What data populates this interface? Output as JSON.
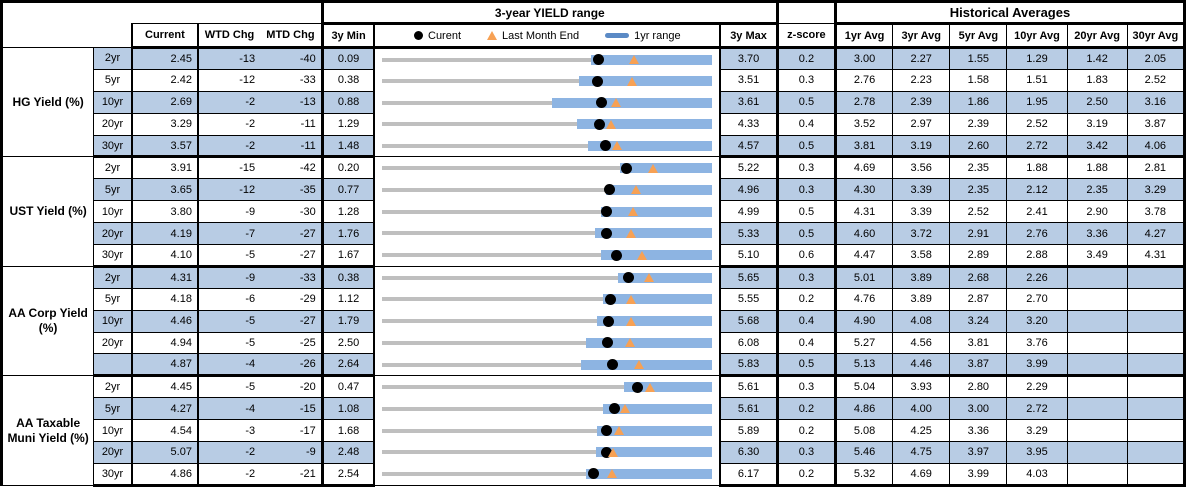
{
  "header": {
    "yield_range_title": "3-year YIELD range",
    "historical_title": "Historical Averages",
    "col_current": "Current",
    "col_wtd": "WTD Chg",
    "col_mtd": "MTD Chg",
    "col_min": "3y Min",
    "col_max": "3y Max",
    "col_z": "z-score",
    "col_avg1": "1yr Avg",
    "col_avg3": "3yr Avg",
    "col_avg5": "5yr Avg",
    "col_avg10": "10yr Avg",
    "col_avg20": "20yr Avg",
    "col_avg30": "30yr Avg",
    "legend": {
      "current": "Curent",
      "last_month_end": "Last Month End",
      "range_1yr": "1yr range"
    }
  },
  "colors": {
    "row_stripe": "#b8cce4",
    "bar_1yr": "#8db4e2",
    "track_3y": "#bfbfbf",
    "marker_current": "#000000",
    "marker_last_month_end": "#f7a154",
    "legend_dash": "#5b8ac5",
    "border": "#000000"
  },
  "sections": [
    {
      "label": "HG Yield (%)",
      "rows": [
        {
          "tenor": "2yr",
          "current": "2.45",
          "wtd": "-13",
          "mtd": "-40",
          "min3y": "0.09",
          "max3y": "3.70",
          "zscore": "0.2",
          "avgs": [
            "3.00",
            "2.27",
            "1.55",
            "1.29",
            "1.42",
            "2.05"
          ],
          "chart": {
            "low1yr": 2.37,
            "lme": 2.85
          }
        },
        {
          "tenor": "5yr",
          "current": "2.42",
          "wtd": "-12",
          "mtd": "-33",
          "min3y": "0.38",
          "max3y": "3.51",
          "zscore": "0.3",
          "avgs": [
            "2.76",
            "2.23",
            "1.58",
            "1.51",
            "1.83",
            "2.52"
          ],
          "chart": {
            "low1yr": 2.25,
            "lme": 2.75
          }
        },
        {
          "tenor": "10yr",
          "current": "2.69",
          "wtd": "-2",
          "mtd": "-13",
          "min3y": "0.88",
          "max3y": "3.61",
          "zscore": "0.5",
          "avgs": [
            "2.78",
            "2.39",
            "1.86",
            "1.95",
            "2.50",
            "3.16"
          ],
          "chart": {
            "low1yr": 2.28,
            "lme": 2.82
          }
        },
        {
          "tenor": "20yr",
          "current": "3.29",
          "wtd": "-2",
          "mtd": "-11",
          "min3y": "1.29",
          "max3y": "4.33",
          "zscore": "0.4",
          "avgs": [
            "3.52",
            "2.97",
            "2.39",
            "2.52",
            "3.19",
            "3.87"
          ],
          "chart": {
            "low1yr": 3.08,
            "lme": 3.4
          }
        },
        {
          "tenor": "30yr",
          "current": "3.57",
          "wtd": "-2",
          "mtd": "-11",
          "min3y": "1.48",
          "max3y": "4.57",
          "zscore": "0.5",
          "avgs": [
            "3.81",
            "3.19",
            "2.60",
            "2.72",
            "3.42",
            "4.06"
          ],
          "chart": {
            "low1yr": 3.41,
            "lme": 3.68
          }
        }
      ]
    },
    {
      "label": "UST Yield (%)",
      "rows": [
        {
          "tenor": "2yr",
          "current": "3.91",
          "wtd": "-15",
          "mtd": "-42",
          "min3y": "0.20",
          "max3y": "5.22",
          "zscore": "0.3",
          "avgs": [
            "4.69",
            "3.56",
            "2.35",
            "1.88",
            "1.88",
            "2.81"
          ],
          "chart": {
            "low1yr": 3.81,
            "lme": 4.33
          }
        },
        {
          "tenor": "5yr",
          "current": "3.65",
          "wtd": "-12",
          "mtd": "-35",
          "min3y": "0.77",
          "max3y": "4.96",
          "zscore": "0.3",
          "avgs": [
            "4.30",
            "3.39",
            "2.35",
            "2.12",
            "2.35",
            "3.29"
          ],
          "chart": {
            "low1yr": 3.61,
            "lme": 4.0
          }
        },
        {
          "tenor": "10yr",
          "current": "3.80",
          "wtd": "-9",
          "mtd": "-30",
          "min3y": "1.28",
          "max3y": "4.99",
          "zscore": "0.5",
          "avgs": [
            "4.31",
            "3.39",
            "2.52",
            "2.41",
            "2.90",
            "3.78"
          ],
          "chart": {
            "low1yr": 3.74,
            "lme": 4.1
          }
        },
        {
          "tenor": "20yr",
          "current": "4.19",
          "wtd": "-7",
          "mtd": "-27",
          "min3y": "1.76",
          "max3y": "5.33",
          "zscore": "0.5",
          "avgs": [
            "4.60",
            "3.72",
            "2.91",
            "2.76",
            "3.36",
            "4.27"
          ],
          "chart": {
            "low1yr": 4.06,
            "lme": 4.46
          }
        },
        {
          "tenor": "30yr",
          "current": "4.10",
          "wtd": "-5",
          "mtd": "-27",
          "min3y": "1.67",
          "max3y": "5.10",
          "zscore": "0.6",
          "avgs": [
            "4.47",
            "3.58",
            "2.89",
            "2.88",
            "3.49",
            "4.31"
          ],
          "chart": {
            "low1yr": 3.94,
            "lme": 4.37
          }
        }
      ]
    },
    {
      "label": "AA Corp Yield (%)",
      "rows": [
        {
          "tenor": "2yr",
          "current": "4.31",
          "wtd": "-9",
          "mtd": "-33",
          "min3y": "0.38",
          "max3y": "5.65",
          "zscore": "0.3",
          "avgs": [
            "5.01",
            "3.89",
            "2.68",
            "2.26",
            "",
            ""
          ],
          "chart": {
            "low1yr": 4.14,
            "lme": 4.64
          }
        },
        {
          "tenor": "5yr",
          "current": "4.18",
          "wtd": "-6",
          "mtd": "-29",
          "min3y": "1.12",
          "max3y": "5.55",
          "zscore": "0.2",
          "avgs": [
            "4.76",
            "3.89",
            "2.87",
            "2.70",
            "",
            ""
          ],
          "chart": {
            "low1yr": 4.08,
            "lme": 4.47
          }
        },
        {
          "tenor": "10yr",
          "current": "4.46",
          "wtd": "-5",
          "mtd": "-27",
          "min3y": "1.79",
          "max3y": "5.68",
          "zscore": "0.4",
          "avgs": [
            "4.90",
            "4.08",
            "3.24",
            "3.20",
            "",
            ""
          ],
          "chart": {
            "low1yr": 4.32,
            "lme": 4.73
          }
        },
        {
          "tenor": "20yr",
          "current": "4.94",
          "wtd": "-5",
          "mtd": "-25",
          "min3y": "2.50",
          "max3y": "6.08",
          "zscore": "0.4",
          "avgs": [
            "5.27",
            "4.56",
            "3.81",
            "3.76",
            "",
            ""
          ],
          "chart": {
            "low1yr": 4.71,
            "lme": 5.19
          }
        },
        {
          "tenor": "",
          "current": "4.87",
          "wtd": "-4",
          "mtd": "-26",
          "min3y": "2.64",
          "max3y": "5.83",
          "zscore": "0.5",
          "avgs": [
            "5.13",
            "4.46",
            "3.87",
            "3.99",
            "",
            ""
          ],
          "chart": {
            "low1yr": 4.56,
            "lme": 5.13
          }
        }
      ]
    },
    {
      "label": "AA Taxable Muni Yield (%)",
      "rows": [
        {
          "tenor": "2yr",
          "current": "4.45",
          "wtd": "-5",
          "mtd": "-20",
          "min3y": "0.47",
          "max3y": "5.61",
          "zscore": "0.3",
          "avgs": [
            "5.04",
            "3.93",
            "2.80",
            "2.29",
            "",
            ""
          ],
          "chart": {
            "low1yr": 4.24,
            "lme": 4.65
          }
        },
        {
          "tenor": "5yr",
          "current": "4.27",
          "wtd": "-4",
          "mtd": "-15",
          "min3y": "1.08",
          "max3y": "5.61",
          "zscore": "0.2",
          "avgs": [
            "4.86",
            "4.00",
            "3.00",
            "2.72",
            "",
            ""
          ],
          "chart": {
            "low1yr": 4.11,
            "lme": 4.42
          }
        },
        {
          "tenor": "10yr",
          "current": "4.54",
          "wtd": "-3",
          "mtd": "-17",
          "min3y": "1.68",
          "max3y": "5.89",
          "zscore": "0.2",
          "avgs": [
            "5.08",
            "4.25",
            "3.36",
            "3.29",
            "",
            ""
          ],
          "chart": {
            "low1yr": 4.42,
            "lme": 4.71
          }
        },
        {
          "tenor": "20yr",
          "current": "5.07",
          "wtd": "-2",
          "mtd": "-9",
          "min3y": "2.48",
          "max3y": "6.30",
          "zscore": "0.3",
          "avgs": [
            "5.46",
            "4.75",
            "3.97",
            "3.95",
            "",
            ""
          ],
          "chart": {
            "low1yr": 4.95,
            "lme": 5.16
          }
        },
        {
          "tenor": "30yr",
          "current": "4.86",
          "wtd": "-2",
          "mtd": "-21",
          "min3y": "2.54",
          "max3y": "6.17",
          "zscore": "0.2",
          "avgs": [
            "5.32",
            "4.69",
            "3.99",
            "4.03",
            "",
            ""
          ],
          "chart": {
            "low1yr": 4.78,
            "lme": 5.07
          }
        }
      ]
    }
  ],
  "chart_data": {
    "type": "bullet-range",
    "title": "3-year YIELD range",
    "legend": [
      "Curent",
      "Last Month End",
      "1yr range"
    ],
    "x_axis_note": "each row scaled from its own 3y Min to 3y Max (yield %); gray track = 3y range, blue bar = 1yr range (upper end equals 3y Max), black dot = current, orange triangle = last month end",
    "groups": [
      {
        "name": "HG Yield (%)",
        "tenors": [
          "2yr",
          "5yr",
          "10yr",
          "20yr",
          "30yr"
        ],
        "current": [
          2.45,
          2.42,
          2.69,
          3.29,
          3.57
        ],
        "wtd_chg_bp": [
          -13,
          -12,
          -2,
          -2,
          -2
        ],
        "mtd_chg_bp": [
          -40,
          -33,
          -13,
          -11,
          -11
        ],
        "min_3y": [
          0.09,
          0.38,
          0.88,
          1.29,
          1.48
        ],
        "max_3y": [
          3.7,
          3.51,
          3.61,
          4.33,
          4.57
        ],
        "last_month_end": [
          2.85,
          2.75,
          2.82,
          3.4,
          3.68
        ],
        "range_1yr_low_est": [
          2.37,
          2.25,
          2.28,
          3.08,
          3.41
        ],
        "range_1yr_high": [
          3.7,
          3.51,
          3.61,
          4.33,
          4.57
        ],
        "z_score": [
          0.2,
          0.3,
          0.5,
          0.4,
          0.5
        ],
        "avg_1yr": [
          3.0,
          2.76,
          2.78,
          3.52,
          3.81
        ],
        "avg_3yr": [
          2.27,
          2.23,
          2.39,
          2.97,
          3.19
        ],
        "avg_5yr": [
          1.55,
          1.58,
          1.86,
          2.39,
          2.6
        ],
        "avg_10yr": [
          1.29,
          1.51,
          1.95,
          2.52,
          2.72
        ],
        "avg_20yr": [
          1.42,
          1.83,
          2.5,
          3.19,
          3.42
        ],
        "avg_30yr": [
          2.05,
          2.52,
          3.16,
          3.87,
          4.06
        ]
      },
      {
        "name": "UST Yield (%)",
        "tenors": [
          "2yr",
          "5yr",
          "10yr",
          "20yr",
          "30yr"
        ],
        "current": [
          3.91,
          3.65,
          3.8,
          4.19,
          4.1
        ],
        "wtd_chg_bp": [
          -15,
          -12,
          -9,
          -7,
          -5
        ],
        "mtd_chg_bp": [
          -42,
          -35,
          -30,
          -27,
          -27
        ],
        "min_3y": [
          0.2,
          0.77,
          1.28,
          1.76,
          1.67
        ],
        "max_3y": [
          5.22,
          4.96,
          4.99,
          5.33,
          5.1
        ],
        "last_month_end": [
          4.33,
          4.0,
          4.1,
          4.46,
          4.37
        ],
        "range_1yr_low_est": [
          3.81,
          3.61,
          3.74,
          4.06,
          3.94
        ],
        "range_1yr_high": [
          5.22,
          4.96,
          4.99,
          5.33,
          5.1
        ],
        "z_score": [
          0.3,
          0.3,
          0.5,
          0.5,
          0.6
        ],
        "avg_1yr": [
          4.69,
          4.3,
          4.31,
          4.6,
          4.47
        ],
        "avg_3yr": [
          3.56,
          3.39,
          3.39,
          3.72,
          3.58
        ],
        "avg_5yr": [
          2.35,
          2.35,
          2.52,
          2.91,
          2.89
        ],
        "avg_10yr": [
          1.88,
          2.12,
          2.41,
          2.76,
          2.88
        ],
        "avg_20yr": [
          1.88,
          2.35,
          2.9,
          3.36,
          3.49
        ],
        "avg_30yr": [
          2.81,
          3.29,
          3.78,
          4.27,
          4.31
        ]
      },
      {
        "name": "AA Corp Yield (%)",
        "tenors": [
          "2yr",
          "5yr",
          "10yr",
          "20yr",
          ""
        ],
        "current": [
          4.31,
          4.18,
          4.46,
          4.94,
          4.87
        ],
        "wtd_chg_bp": [
          -9,
          -6,
          -5,
          -5,
          -4
        ],
        "mtd_chg_bp": [
          -33,
          -29,
          -27,
          -25,
          -26
        ],
        "min_3y": [
          0.38,
          1.12,
          1.79,
          2.5,
          2.64
        ],
        "max_3y": [
          5.65,
          5.55,
          5.68,
          6.08,
          5.83
        ],
        "last_month_end": [
          4.64,
          4.47,
          4.73,
          5.19,
          5.13
        ],
        "range_1yr_low_est": [
          4.14,
          4.08,
          4.32,
          4.71,
          4.56
        ],
        "range_1yr_high": [
          5.65,
          5.55,
          5.68,
          6.08,
          5.83
        ],
        "z_score": [
          0.3,
          0.2,
          0.4,
          0.4,
          0.5
        ],
        "avg_1yr": [
          5.01,
          4.76,
          4.9,
          5.27,
          5.13
        ],
        "avg_3yr": [
          3.89,
          3.89,
          4.08,
          4.56,
          4.46
        ],
        "avg_5yr": [
          2.68,
          2.87,
          3.24,
          3.81,
          3.87
        ],
        "avg_10yr": [
          2.26,
          2.7,
          3.2,
          3.76,
          3.99
        ],
        "avg_20yr": [
          null,
          null,
          null,
          null,
          null
        ],
        "avg_30yr": [
          null,
          null,
          null,
          null,
          null
        ]
      },
      {
        "name": "AA Taxable Muni Yield (%)",
        "tenors": [
          "2yr",
          "5yr",
          "10yr",
          "20yr",
          "30yr"
        ],
        "current": [
          4.45,
          4.27,
          4.54,
          5.07,
          4.86
        ],
        "wtd_chg_bp": [
          -5,
          -4,
          -3,
          -2,
          -2
        ],
        "mtd_chg_bp": [
          -20,
          -15,
          -17,
          -9,
          -21
        ],
        "min_3y": [
          0.47,
          1.08,
          1.68,
          2.48,
          2.54
        ],
        "max_3y": [
          5.61,
          5.61,
          5.89,
          6.3,
          6.17
        ],
        "last_month_end": [
          4.65,
          4.42,
          4.71,
          5.16,
          5.07
        ],
        "range_1yr_low_est": [
          4.24,
          4.11,
          4.42,
          4.95,
          4.78
        ],
        "range_1yr_high": [
          5.61,
          5.61,
          5.89,
          6.3,
          6.17
        ],
        "z_score": [
          0.3,
          0.2,
          0.2,
          0.3,
          0.2
        ],
        "avg_1yr": [
          5.04,
          4.86,
          5.08,
          5.46,
          5.32
        ],
        "avg_3yr": [
          3.93,
          4.0,
          4.25,
          4.75,
          4.69
        ],
        "avg_5yr": [
          2.8,
          3.0,
          3.36,
          3.97,
          3.99
        ],
        "avg_10yr": [
          2.29,
          2.72,
          3.29,
          3.95,
          4.03
        ],
        "avg_20yr": [
          null,
          null,
          null,
          null,
          null
        ],
        "avg_30yr": [
          null,
          null,
          null,
          null,
          null
        ]
      }
    ]
  }
}
